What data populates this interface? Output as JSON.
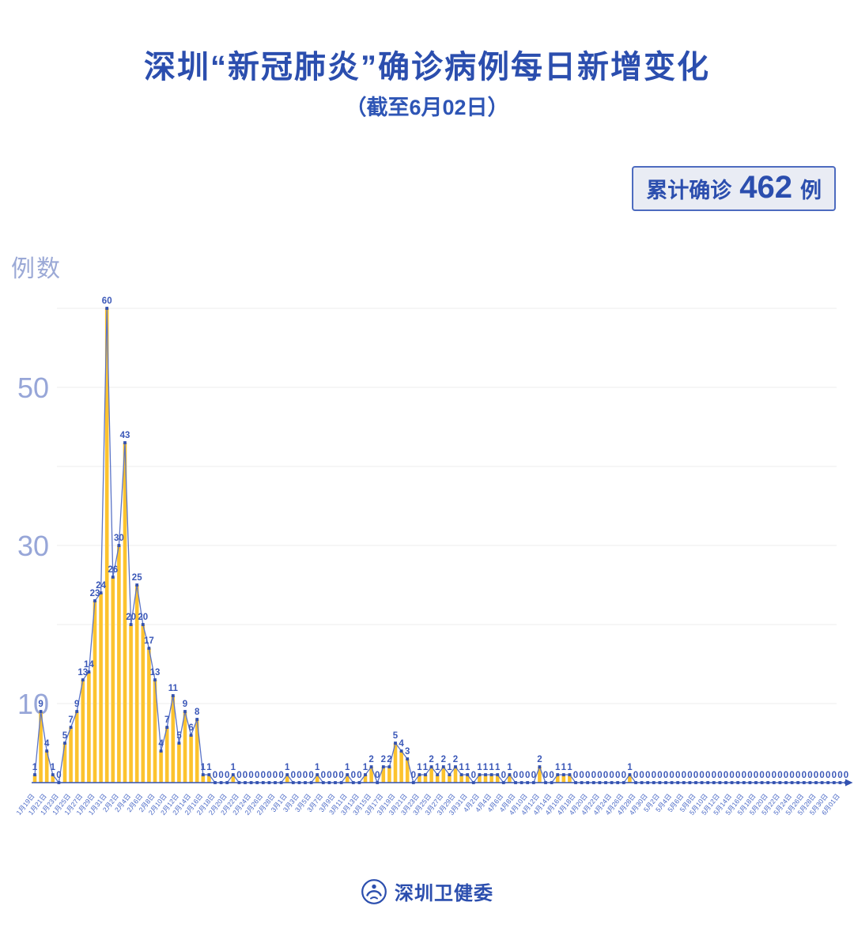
{
  "title": "深圳“新冠肺炎”确诊病例每日新增变化",
  "subtitle": "（截至6月02日）",
  "badge": {
    "label": "累计确诊",
    "value": "462",
    "unit": "例"
  },
  "y_axis_title": "例数",
  "footer": {
    "org": "深圳卫健委"
  },
  "colors": {
    "accent": "#2B4EAE",
    "bar": "#FCC32E",
    "line": "#5B74C6",
    "marker": "#3352B0",
    "value_label": "#3B58B8",
    "axis": "#3352B0",
    "grid": "#ECECEC",
    "ytick": "#97A6D8",
    "xtick": "#4A69C6",
    "badge_bg": "#E9ECF4"
  },
  "chart_data": {
    "type": "bar",
    "line_overlay": true,
    "title": "深圳“新冠肺炎”确诊病例每日新增变化",
    "subtitle": "（截至6月02日）",
    "xlabel": "",
    "ylabel": "例数",
    "ylim": [
      0,
      60
    ],
    "gridlines": [
      10,
      20,
      30,
      40,
      50,
      60
    ],
    "yticks_labeled": [
      10,
      30,
      50
    ],
    "label_every": 2,
    "cumulative_total": 462,
    "x": [
      "1月19日",
      "1月20日",
      "1月21日",
      "1月22日",
      "1月23日",
      "1月24日",
      "1月25日",
      "1月26日",
      "1月27日",
      "1月28日",
      "1月29日",
      "1月30日",
      "1月31日",
      "2月1日",
      "2月2日",
      "2月3日",
      "2月4日",
      "2月5日",
      "2月6日",
      "2月7日",
      "2月8日",
      "2月9日",
      "2月10日",
      "2月11日",
      "2月12日",
      "2月13日",
      "2月14日",
      "2月15日",
      "2月16日",
      "2月17日",
      "2月18日",
      "2月19日",
      "2月20日",
      "2月21日",
      "2月22日",
      "2月23日",
      "2月24日",
      "2月25日",
      "2月26日",
      "2月27日",
      "2月28日",
      "2月29日",
      "3月1日",
      "3月2日",
      "3月3日",
      "3月4日",
      "3月5日",
      "3月6日",
      "3月7日",
      "3月8日",
      "3月9日",
      "3月10日",
      "3月11日",
      "3月12日",
      "3月13日",
      "3月14日",
      "3月15日",
      "3月16日",
      "3月17日",
      "3月18日",
      "3月19日",
      "3月20日",
      "3月21日",
      "3月22日",
      "3月23日",
      "3月24日",
      "3月25日",
      "3月26日",
      "3月27日",
      "3月28日",
      "3月29日",
      "3月30日",
      "3月31日",
      "4月1日",
      "4月2日",
      "4月3日",
      "4月4日",
      "4月5日",
      "4月6日",
      "4月7日",
      "4月8日",
      "4月9日",
      "4月10日",
      "4月11日",
      "4月12日",
      "4月13日",
      "4月14日",
      "4月15日",
      "4月16日",
      "4月17日",
      "4月18日",
      "4月19日",
      "4月20日",
      "4月21日",
      "4月22日",
      "4月23日",
      "4月24日",
      "4月25日",
      "4月26日",
      "4月27日",
      "4月28日",
      "4月29日",
      "4月30日",
      "5月1日",
      "5月2日",
      "5月3日",
      "5月4日",
      "5月5日",
      "5月6日",
      "5月7日",
      "5月8日",
      "5月9日",
      "5月10日",
      "5月11日",
      "5月12日",
      "5月13日",
      "5月14日",
      "5月15日",
      "5月16日",
      "5月17日",
      "5月18日",
      "5月19日",
      "5月20日",
      "5月21日",
      "5月22日",
      "5月23日",
      "5月24日",
      "5月25日",
      "5月26日",
      "5月27日",
      "5月28日",
      "5月29日",
      "5月30日",
      "5月31日",
      "6月01日",
      "6月02日"
    ],
    "values": [
      1,
      9,
      4,
      1,
      0,
      5,
      7,
      9,
      13,
      14,
      23,
      24,
      60,
      26,
      30,
      43,
      20,
      25,
      20,
      17,
      13,
      4,
      7,
      11,
      5,
      9,
      6,
      8,
      1,
      1,
      0,
      0,
      0,
      1,
      0,
      0,
      0,
      0,
      0,
      0,
      0,
      0,
      1,
      0,
      0,
      0,
      0,
      1,
      0,
      0,
      0,
      0,
      1,
      0,
      0,
      1,
      2,
      0,
      2,
      2,
      5,
      4,
      3,
      0,
      1,
      1,
      2,
      1,
      2,
      1,
      2,
      1,
      1,
      0,
      1,
      1,
      1,
      1,
      0,
      1,
      0,
      0,
      0,
      0,
      2,
      0,
      0,
      1,
      1,
      1,
      0,
      0,
      0,
      0,
      0,
      0,
      0,
      0,
      0,
      1,
      0,
      0,
      0,
      0,
      0,
      0,
      0,
      0,
      0,
      0,
      0,
      0,
      0,
      0,
      0,
      0,
      0,
      0,
      0,
      0,
      0,
      0,
      0,
      0,
      0,
      0,
      0,
      0,
      0,
      0,
      0,
      0,
      0,
      0,
      0,
      0
    ]
  }
}
